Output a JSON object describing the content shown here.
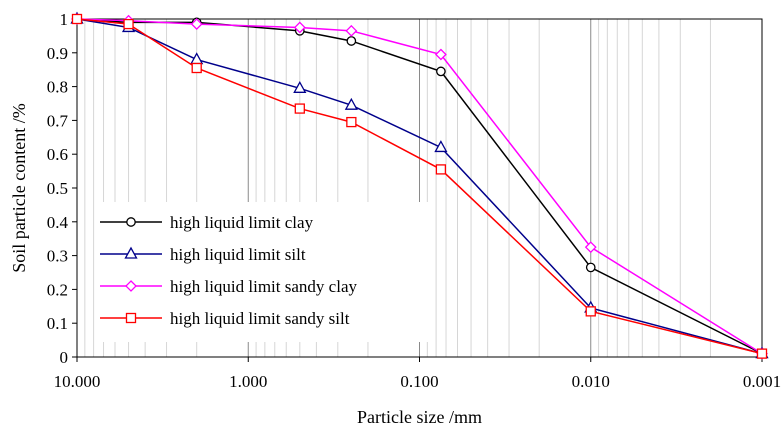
{
  "chart_data": {
    "type": "line",
    "xlabel": "Particle size /mm",
    "ylabel": "Soil particle content /%",
    "x_scale": "log",
    "x_reversed": true,
    "xlim": [
      10,
      0.001
    ],
    "ylim": [
      0,
      1
    ],
    "x_ticks": [
      10,
      1,
      0.1,
      0.01,
      0.001
    ],
    "x_tick_labels": [
      "10.000",
      "1.000",
      "0.100",
      "0.010",
      "0.001"
    ],
    "y_ticks": [
      0,
      0.1,
      0.2,
      0.3,
      0.4,
      0.5,
      0.6,
      0.7,
      0.8,
      0.9,
      1
    ],
    "y_tick_labels": [
      "0",
      "0.1",
      "0.2",
      "0.3",
      "0.4",
      "0.5",
      "0.6",
      "0.7",
      "0.8",
      "0.9",
      "1"
    ],
    "grid": "vertical log gridlines",
    "legend_position": "lower-left",
    "series": [
      {
        "name": "high liquid limit clay",
        "color": "#000000",
        "marker": "circle",
        "x": [
          10,
          5,
          2,
          0.5,
          0.25,
          0.075,
          0.01,
          0.001
        ],
        "y": [
          1.0,
          0.99,
          0.99,
          0.965,
          0.935,
          0.845,
          0.265,
          0.01
        ]
      },
      {
        "name": "high liquid limit silt",
        "color": "#00008b",
        "marker": "triangle",
        "x": [
          10,
          5,
          2,
          0.5,
          0.25,
          0.075,
          0.01,
          0.001
        ],
        "y": [
          1.0,
          0.975,
          0.88,
          0.795,
          0.745,
          0.62,
          0.145,
          0.01
        ]
      },
      {
        "name": "high liquid limit sandy clay",
        "color": "#ff00ff",
        "marker": "diamond",
        "x": [
          10,
          5,
          2,
          0.5,
          0.25,
          0.075,
          0.01,
          0.001
        ],
        "y": [
          1.0,
          0.995,
          0.985,
          0.975,
          0.965,
          0.895,
          0.325,
          0.01
        ]
      },
      {
        "name": "high liquid limit sandy silt",
        "color": "#ff0000",
        "marker": "square",
        "x": [
          10,
          5,
          2,
          0.5,
          0.25,
          0.075,
          0.01,
          0.001
        ],
        "y": [
          1.0,
          0.985,
          0.855,
          0.735,
          0.695,
          0.555,
          0.135,
          0.01
        ]
      }
    ]
  }
}
